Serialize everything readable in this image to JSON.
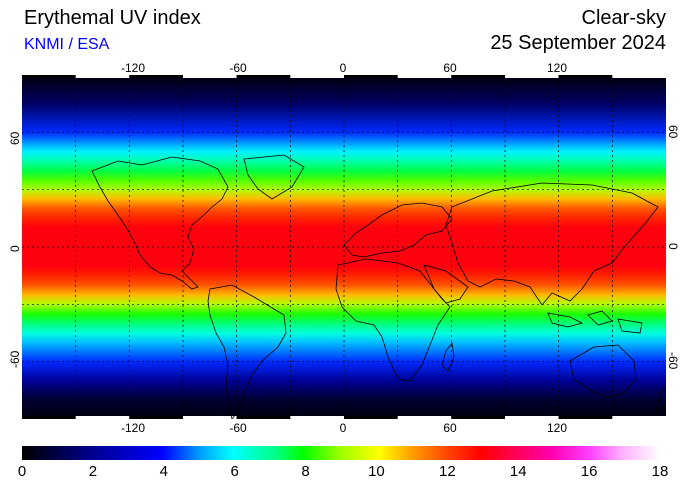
{
  "title": "Erythemal UV index",
  "credit": "KNMI / ESA",
  "mode": "Clear-sky",
  "date": "25 September 2024",
  "lon_ticks": [
    "-120",
    "-60",
    "0",
    "60",
    "120"
  ],
  "lon_values": [
    -120,
    -60,
    0,
    60,
    120
  ],
  "lat_ticks": [
    "60",
    "0",
    "-60"
  ],
  "lat_values": [
    60,
    0,
    -60
  ],
  "colorbar": {
    "ticks": [
      "0",
      "2",
      "4",
      "6",
      "8",
      "10",
      "12",
      "14",
      "16",
      "18"
    ],
    "values": [
      0,
      2,
      4,
      6,
      8,
      10,
      12,
      14,
      16,
      18
    ],
    "min": 0,
    "max": 18,
    "colors": [
      "#000000",
      "#0000ff",
      "#00ffff",
      "#00ff00",
      "#ffff00",
      "#ff0000",
      "#ff00ff",
      "#ffffff"
    ]
  },
  "map": {
    "lon_range": [
      -180,
      180
    ],
    "lat_range": [
      -90,
      90
    ],
    "grid": true,
    "zonal_uv_profile": {
      "lat": [
        90,
        75,
        60,
        50,
        45,
        40,
        35,
        30,
        25,
        20,
        15,
        10,
        5,
        0,
        -5,
        -10,
        -15,
        -20,
        -25,
        -30,
        -35,
        -40,
        -45,
        -50,
        -60,
        -70,
        -80,
        -90
      ],
      "uv": [
        0.1,
        1,
        3,
        5,
        6,
        7,
        8.5,
        9.5,
        11,
        12,
        12.5,
        13,
        13,
        13,
        13,
        13,
        12.5,
        12,
        11,
        9.5,
        8,
        6.5,
        5.5,
        4.5,
        3,
        1.5,
        0.5,
        0.1
      ]
    }
  }
}
